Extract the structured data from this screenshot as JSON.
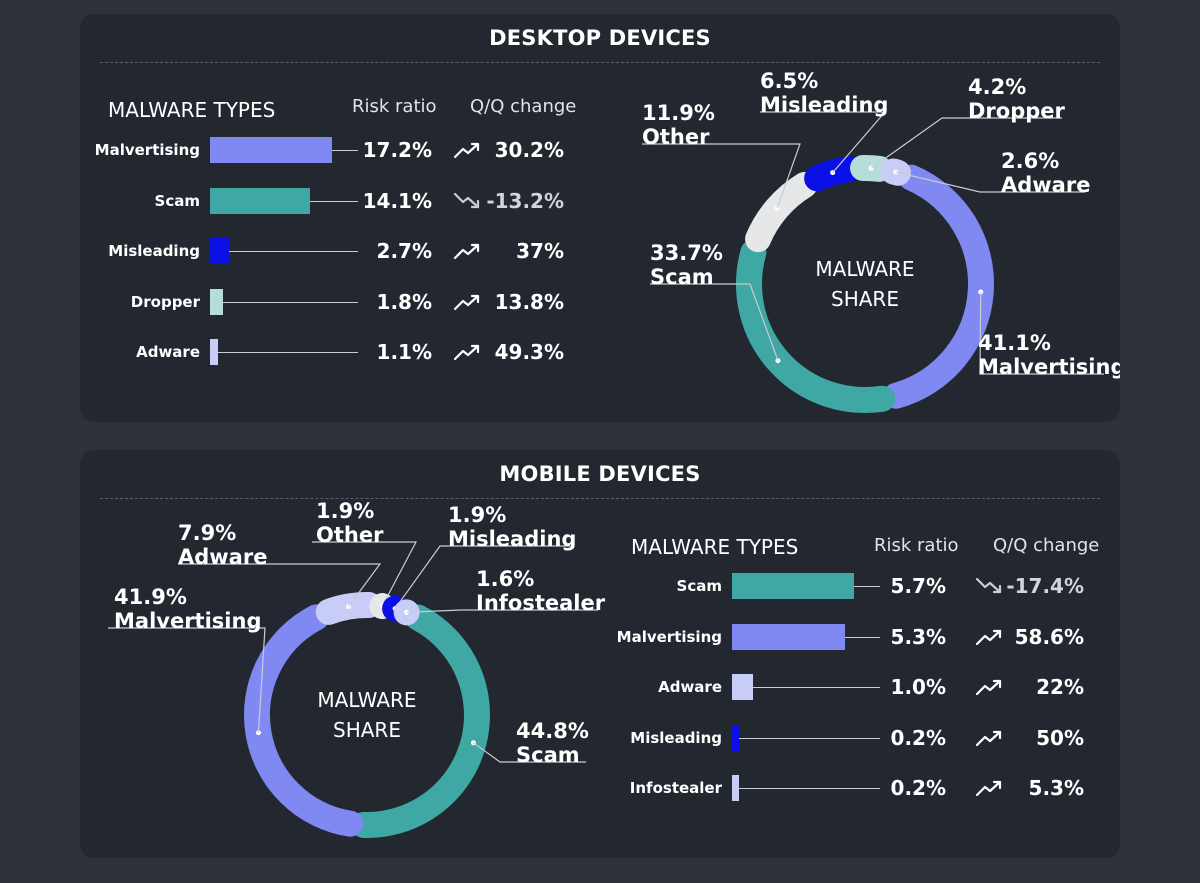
{
  "colors": {
    "malvertising": "#8088f2",
    "scam": "#3fa8a4",
    "misleading": "#0a10e6",
    "dropper": "#b5dedb",
    "adware_desktop": "#c8cdf7",
    "other": "#e6e7e8",
    "infostealer": "#c8cdf7"
  },
  "chart_data": [
    {
      "type": "table",
      "title": "DESKTOP DEVICES",
      "section_title": "MALWARE TYPES",
      "columns": [
        "Risk ratio",
        "Q/Q change"
      ],
      "rows": [
        {
          "label": "Malvertising",
          "risk_ratio": 17.2,
          "ratio_text": "17.2%",
          "change": 30.2,
          "change_text": "30.2%",
          "trend": "up"
        },
        {
          "label": "Scam",
          "risk_ratio": 14.1,
          "ratio_text": "14.1%",
          "change": -13.2,
          "change_text": "-13.2%",
          "trend": "down"
        },
        {
          "label": "Misleading",
          "risk_ratio": 2.7,
          "ratio_text": "2.7%",
          "change": 37,
          "change_text": "37%",
          "trend": "up"
        },
        {
          "label": "Dropper",
          "risk_ratio": 1.8,
          "ratio_text": "1.8%",
          "change": 13.8,
          "change_text": "13.8%",
          "trend": "up"
        },
        {
          "label": "Adware",
          "risk_ratio": 1.1,
          "ratio_text": "1.1%",
          "change": 49.3,
          "change_text": "49.3%",
          "trend": "up"
        }
      ]
    },
    {
      "type": "pie",
      "title": "MALWARE SHARE",
      "center_lines": [
        "MALWARE",
        "SHARE"
      ],
      "slices": [
        {
          "name": "Malvertising",
          "value": 41.1,
          "pct_text": "41.1%"
        },
        {
          "name": "Scam",
          "value": 33.7,
          "pct_text": "33.7%"
        },
        {
          "name": "Other",
          "value": 11.9,
          "pct_text": "11.9%"
        },
        {
          "name": "Misleading",
          "value": 6.5,
          "pct_text": "6.5%"
        },
        {
          "name": "Dropper",
          "value": 4.2,
          "pct_text": "4.2%"
        },
        {
          "name": "Adware",
          "value": 2.6,
          "pct_text": "2.6%"
        }
      ]
    },
    {
      "type": "table",
      "title": "MOBILE DEVICES",
      "section_title": "MALWARE TYPES",
      "columns": [
        "Risk ratio",
        "Q/Q change"
      ],
      "rows": [
        {
          "label": "Scam",
          "risk_ratio": 5.7,
          "ratio_text": "5.7%",
          "change": -17.4,
          "change_text": "-17.4%",
          "trend": "down"
        },
        {
          "label": "Malvertising",
          "risk_ratio": 5.3,
          "ratio_text": "5.3%",
          "change": 58.6,
          "change_text": "58.6%",
          "trend": "up"
        },
        {
          "label": "Adware",
          "risk_ratio": 1.0,
          "ratio_text": "1.0%",
          "change": 22,
          "change_text": "22%",
          "trend": "up"
        },
        {
          "label": "Misleading",
          "risk_ratio": 0.2,
          "ratio_text": "0.2%",
          "change": 50,
          "change_text": "50%",
          "trend": "up"
        },
        {
          "label": "Infostealer",
          "risk_ratio": 0.2,
          "ratio_text": "0.2%",
          "change": 5.3,
          "change_text": "5.3%",
          "trend": "up"
        }
      ]
    },
    {
      "type": "pie",
      "title": "MALWARE SHARE",
      "center_lines": [
        "MALWARE",
        "SHARE"
      ],
      "slices": [
        {
          "name": "Scam",
          "value": 44.8,
          "pct_text": "44.8%"
        },
        {
          "name": "Malvertising",
          "value": 41.9,
          "pct_text": "41.9%"
        },
        {
          "name": "Adware",
          "value": 7.9,
          "pct_text": "7.9%"
        },
        {
          "name": "Other",
          "value": 1.9,
          "pct_text": "1.9%"
        },
        {
          "name": "Misleading",
          "value": 1.9,
          "pct_text": "1.9%"
        },
        {
          "name": "Infostealer",
          "value": 1.6,
          "pct_text": "1.6%"
        }
      ]
    }
  ]
}
